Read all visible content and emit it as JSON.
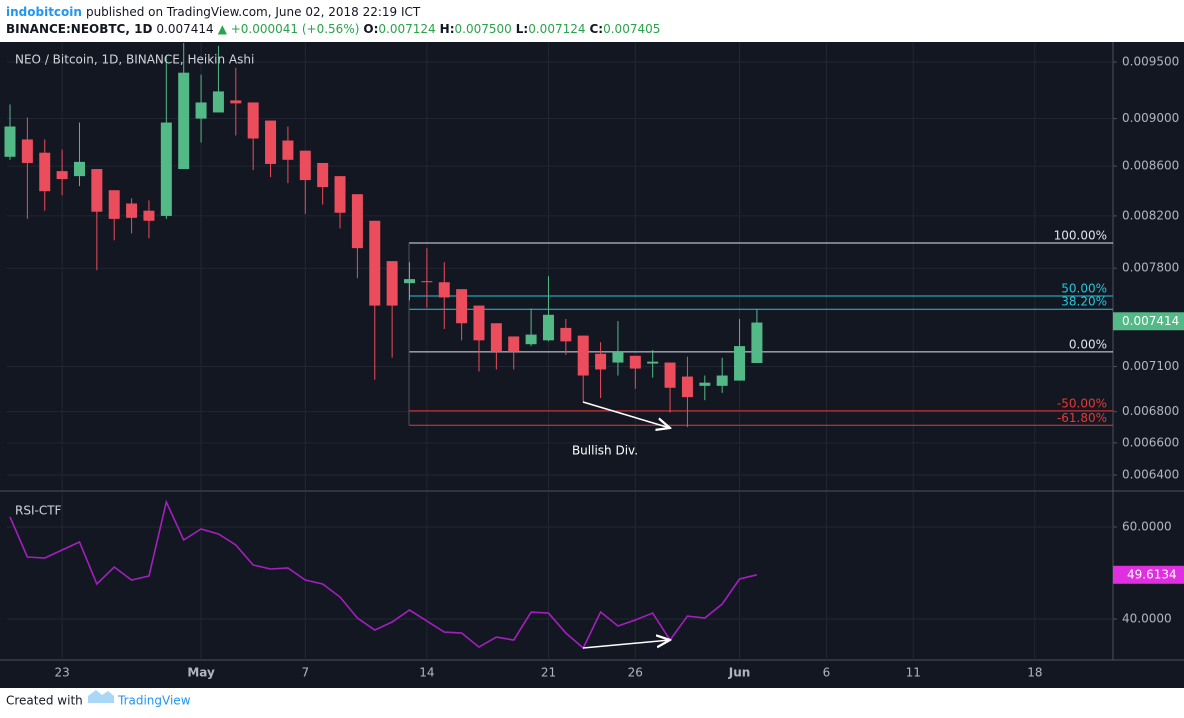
{
  "header": {
    "author": "indobitcoin",
    "published": "published on TradingView.com, June 02, 2018 22:19 ICT",
    "symbol": "BINANCE:NEOBTC, 1D",
    "change": "▲ +0.000041 (+0.56%)",
    "ohlc": [
      {
        "key": "O:",
        "text": "0.007124"
      },
      {
        "key": "H:",
        "text": "0.007500"
      },
      {
        "key": "L:",
        "text": "0.007124"
      },
      {
        "key": "C:",
        "text": "0.007405"
      }
    ]
  },
  "chart_data": [
    {
      "type": "candlestick",
      "title": "NEO / Bitcoin, 1D, BINANCE, Heikin Ashi",
      "log_scale": true,
      "grid": true,
      "up_color": "#53b987",
      "down_color": "#eb4d5c",
      "categories": [
        null,
        null,
        null,
        "23",
        null,
        null,
        null,
        null,
        null,
        null,
        null,
        "May",
        null,
        null,
        null,
        null,
        null,
        "7",
        null,
        null,
        null,
        null,
        null,
        null,
        "14",
        null,
        null,
        null,
        null,
        null,
        null,
        "21",
        null,
        null,
        null,
        null,
        "26",
        null,
        null,
        null,
        null,
        null,
        "Jun",
        null,
        null,
        null,
        null,
        "6",
        null,
        null,
        null,
        null,
        "11",
        null,
        null,
        null,
        null,
        null,
        null,
        "18",
        null,
        null,
        null,
        null
      ],
      "open": [
        0.008677,
        0.008822,
        0.008711,
        0.008559,
        0.008518,
        0.008576,
        0.008404,
        0.008298,
        0.008241,
        0.0082,
        0.008576,
        0.009,
        0.009053,
        0.009158,
        0.00914,
        0.008983,
        0.008813,
        0.008728,
        0.008626,
        0.008518,
        0.008372,
        0.008162,
        0.007853,
        0.007689,
        0.007704,
        0.007696,
        0.007645,
        0.007526,
        0.0074,
        0.007307,
        0.007253,
        0.00728,
        0.007367,
        0.007313,
        0.007187,
        0.007127,
        0.007173,
        0.00712,
        0.007127,
        0.007032,
        0.00697,
        0.00697,
        0.007005,
        0.007124,
        null,
        null,
        null,
        null,
        null,
        null,
        null,
        null,
        null,
        null,
        null,
        null,
        null,
        null,
        null,
        null,
        null,
        null,
        null,
        null
      ],
      "high": [
        0.009123,
        0.009009,
        0.008822,
        0.008737,
        0.008966,
        0.008576,
        0.008404,
        0.008339,
        0.008323,
        0.009561,
        0.009675,
        0.009386,
        0.009649,
        0.009447,
        0.00914,
        0.008983,
        0.008932,
        0.008728,
        0.008626,
        0.008518,
        0.008372,
        0.008162,
        0.007853,
        0.007845,
        0.007951,
        0.007845,
        0.007645,
        0.007526,
        0.0074,
        0.007307,
        0.007504,
        0.007741,
        0.00743,
        0.007313,
        0.007267,
        0.007415,
        0.007173,
        0.007213,
        0.007127,
        0.007167,
        0.007039,
        0.00716,
        0.00743,
        0.0075,
        null,
        null,
        null,
        null,
        null,
        null,
        null,
        null,
        null,
        null,
        null,
        null,
        null,
        null,
        null,
        null,
        null,
        null,
        null,
        null
      ],
      "low": [
        0.008652,
        0.008177,
        0.008241,
        0.008363,
        0.008437,
        0.007785,
        0.008011,
        0.008064,
        0.008026,
        0.008177,
        0.008576,
        0.008796,
        0.009053,
        0.008856,
        0.008567,
        0.00851,
        0.008461,
        0.008216,
        0.00829,
        0.008102,
        0.007726,
        0.007011,
        0.00716,
        0.007563,
        0.007511,
        0.00736,
        0.00728,
        0.007066,
        0.00708,
        0.00708,
        0.00724,
        0.007273,
        0.00718,
        0.006861,
        0.006889,
        0.007039,
        0.00695,
        0.007025,
        0.006794,
        0.0067,
        0.006875,
        0.006923,
        0.007005,
        0.007124,
        null,
        null,
        null,
        null,
        null,
        null,
        null,
        null,
        null,
        null,
        null,
        null,
        null,
        null,
        null,
        null,
        null,
        null,
        null,
        null
      ],
      "close": [
        0.008932,
        0.008626,
        0.008396,
        0.008494,
        0.008635,
        0.008233,
        0.008177,
        0.008185,
        0.008162,
        0.008966,
        0.009404,
        0.00914,
        0.009237,
        0.009132,
        0.00883,
        0.008618,
        0.008652,
        0.008486,
        0.008429,
        0.008225,
        0.007951,
        0.007526,
        0.007526,
        0.007719,
        0.007696,
        0.007585,
        0.0074,
        0.00728,
        0.0072,
        0.0072,
        0.00732,
        0.00746,
        0.007273,
        0.007039,
        0.00708,
        0.0072,
        0.007086,
        0.007133,
        0.006957,
        0.006895,
        0.006991,
        0.007039,
        0.00724,
        0.007405,
        null,
        null,
        null,
        null,
        null,
        null,
        null,
        null,
        null,
        null,
        null,
        null,
        null,
        null,
        null,
        null,
        null,
        null,
        null,
        null
      ],
      "ylim": [
        0.006309,
        0.009684
      ],
      "yticks": [
        {
          "value": 0.0095,
          "label": "0.009500"
        },
        {
          "value": 0.009,
          "label": "0.009000"
        },
        {
          "value": 0.0086,
          "label": "0.008600"
        },
        {
          "value": 0.0082,
          "label": "0.008200"
        },
        {
          "value": 0.0078,
          "label": "0.007800"
        },
        {
          "value": 0.0071,
          "label": "0.007100"
        },
        {
          "value": 0.0068,
          "label": "0.006800"
        },
        {
          "value": 0.0066,
          "label": "0.006600"
        },
        {
          "value": 0.0064,
          "label": "0.006400"
        }
      ],
      "last_price": 0.007414,
      "last_price_color": "#53b987",
      "fib_levels": [
        {
          "name": "100.00%",
          "price": 0.00799,
          "color": "#e0e3eb"
        },
        {
          "name": "50.00%",
          "price": 0.007595,
          "color": "#26c6da"
        },
        {
          "name": "38.20%",
          "price": 0.0075,
          "color": "#26c6da"
        },
        {
          "name": "0.00%",
          "price": 0.0072,
          "color": "#e0e3eb"
        },
        {
          "name": "-50.00%",
          "price": 0.006805,
          "color": "#e53935"
        },
        {
          "name": "-61.80%",
          "price": 0.006712,
          "color": "#e53935"
        }
      ],
      "annotations": [
        "Bullish Div."
      ]
    },
    {
      "type": "line",
      "title": "RSI-CTF",
      "color": "#a41fbf",
      "tag_color": "#e02fe0",
      "grid": true,
      "values": [
        62.17,
        53.48,
        53.26,
        55.0,
        56.74,
        47.61,
        51.3,
        48.48,
        49.35,
        65.43,
        57.17,
        59.57,
        58.48,
        56.09,
        51.74,
        50.87,
        51.09,
        48.48,
        47.61,
        44.78,
        40.22,
        37.61,
        39.35,
        41.96,
        39.57,
        37.17,
        36.96,
        33.91,
        36.09,
        35.43,
        41.52,
        41.3,
        36.96,
        33.7,
        41.52,
        38.48,
        39.78,
        41.3,
        35.43,
        40.65,
        40.22,
        43.26,
        48.7,
        49.6134,
        null,
        null,
        null,
        null,
        null,
        null,
        null,
        null,
        null,
        null,
        null,
        null,
        null,
        null,
        null,
        null,
        null,
        null,
        null,
        null
      ],
      "ylim": [
        31.1,
        67.6
      ],
      "yticks": [
        {
          "value": 60,
          "label": "60.0000"
        },
        {
          "value": 40,
          "label": "40.0000"
        }
      ]
    }
  ],
  "footer": {
    "created_with": "Created with",
    "brand": "TradingView"
  }
}
